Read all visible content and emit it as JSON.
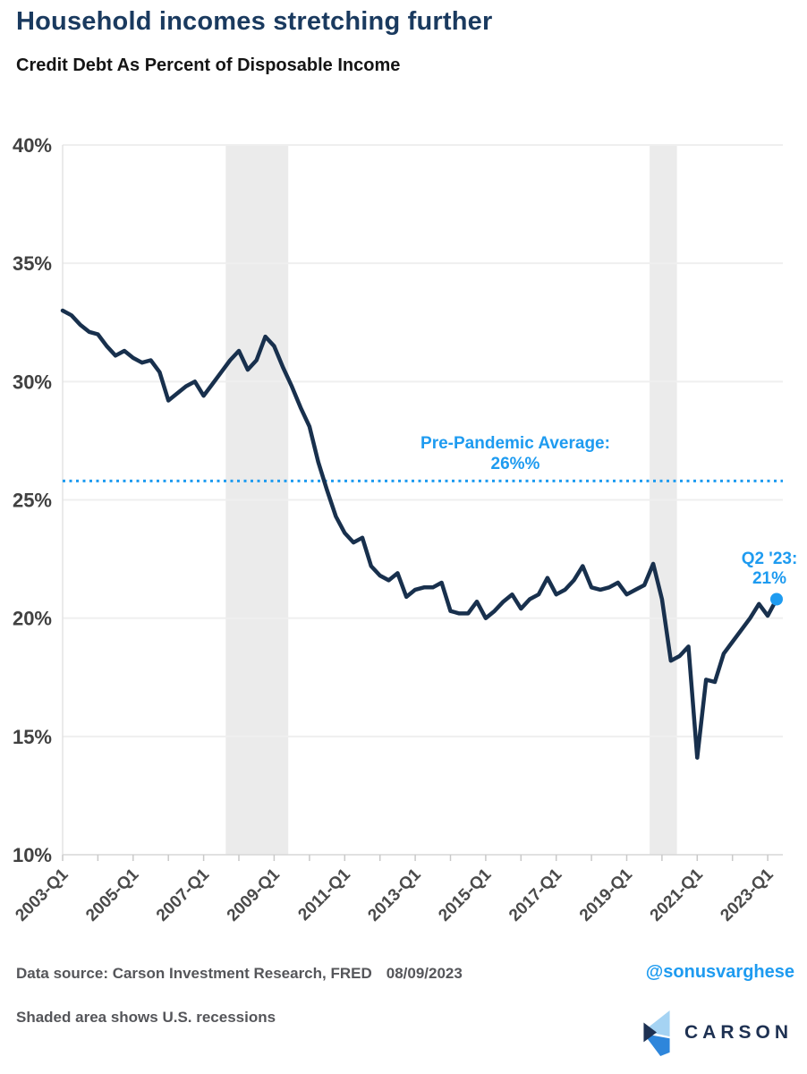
{
  "header": {
    "title": "Household incomes stretching further",
    "subtitle": "Credit Debt As Percent of Disposable Income"
  },
  "chart_data": {
    "type": "line",
    "title": "Credit Debt As Percent of Disposable Income",
    "grid": "horizontal",
    "x_axis": {
      "range": [
        "2003-Q1",
        "2023-Q2"
      ],
      "frequency": "quarterly",
      "tick_labels": [
        "2003-Q1",
        "2005-Q1",
        "2007-Q1",
        "2009-Q1",
        "2011-Q1",
        "2013-Q1",
        "2015-Q1",
        "2017-Q1",
        "2019-Q1",
        "2021-Q1",
        "2023-Q1"
      ],
      "minor_ticks": "yearly"
    },
    "y_axis": {
      "min": 10,
      "max": 40,
      "unit": "%",
      "tick_labels": [
        "10%",
        "15%",
        "20%",
        "25%",
        "30%",
        "35%",
        "40%"
      ]
    },
    "series": [
      {
        "name": "Credit debt as percent of disposable income",
        "color": "#18304d",
        "quarters": [
          "2003-Q1",
          "2003-Q2",
          "2003-Q3",
          "2003-Q4",
          "2004-Q1",
          "2004-Q2",
          "2004-Q3",
          "2004-Q4",
          "2005-Q1",
          "2005-Q2",
          "2005-Q3",
          "2005-Q4",
          "2006-Q1",
          "2006-Q2",
          "2006-Q3",
          "2006-Q4",
          "2007-Q1",
          "2007-Q2",
          "2007-Q3",
          "2007-Q4",
          "2008-Q1",
          "2008-Q2",
          "2008-Q3",
          "2008-Q4",
          "2009-Q1",
          "2009-Q2",
          "2009-Q3",
          "2009-Q4",
          "2010-Q1",
          "2010-Q2",
          "2010-Q3",
          "2010-Q4",
          "2011-Q1",
          "2011-Q2",
          "2011-Q3",
          "2011-Q4",
          "2012-Q1",
          "2012-Q2",
          "2012-Q3",
          "2012-Q4",
          "2013-Q1",
          "2013-Q2",
          "2013-Q3",
          "2013-Q4",
          "2014-Q1",
          "2014-Q2",
          "2014-Q3",
          "2014-Q4",
          "2015-Q1",
          "2015-Q2",
          "2015-Q3",
          "2015-Q4",
          "2016-Q1",
          "2016-Q2",
          "2016-Q3",
          "2016-Q4",
          "2017-Q1",
          "2017-Q2",
          "2017-Q3",
          "2017-Q4",
          "2018-Q1",
          "2018-Q2",
          "2018-Q3",
          "2018-Q4",
          "2019-Q1",
          "2019-Q2",
          "2019-Q3",
          "2019-Q4",
          "2020-Q1",
          "2020-Q2",
          "2020-Q3",
          "2020-Q4",
          "2021-Q1",
          "2021-Q2",
          "2021-Q3",
          "2021-Q4",
          "2022-Q1",
          "2022-Q2",
          "2022-Q3",
          "2022-Q4",
          "2023-Q1",
          "2023-Q2"
        ],
        "values": [
          33.0,
          32.8,
          32.4,
          32.1,
          32.0,
          31.5,
          31.1,
          31.3,
          31.0,
          30.8,
          30.9,
          30.4,
          29.2,
          29.5,
          29.8,
          30.0,
          29.4,
          29.9,
          30.4,
          30.9,
          31.3,
          30.5,
          30.9,
          31.9,
          31.5,
          30.6,
          29.8,
          28.9,
          28.1,
          26.6,
          25.4,
          24.3,
          23.6,
          23.2,
          23.4,
          22.2,
          21.8,
          21.6,
          21.9,
          20.9,
          21.2,
          21.3,
          21.3,
          21.5,
          20.3,
          20.2,
          20.2,
          20.7,
          20.0,
          20.3,
          20.7,
          21.0,
          20.4,
          20.8,
          21.0,
          21.7,
          21.0,
          21.2,
          21.6,
          22.2,
          21.3,
          21.2,
          21.3,
          21.5,
          21.0,
          21.2,
          21.4,
          22.3,
          20.8,
          18.2,
          18.4,
          18.8,
          14.1,
          17.4,
          17.3,
          18.5,
          19.0,
          19.5,
          20.0,
          20.6,
          20.1,
          20.8
        ]
      }
    ],
    "average_line": {
      "value": 25.8,
      "style": "dotted",
      "color": "#1e9bf0",
      "label": [
        "Pre-Pandemic Average:",
        "26%%"
      ]
    },
    "last_point": {
      "quarter": "2023-Q2",
      "value": 20.8,
      "marker_color": "#1e9bf0",
      "label": [
        "Q2 '23:",
        "21%"
      ]
    },
    "recessions": {
      "note": "Shaded area shows U.S. recessions",
      "color": "#ebebeb",
      "bands": [
        {
          "from_q": "2007-Q3",
          "to_q": "2009-Q3",
          "x_start_index": 18.5,
          "x_end_index": 25.6
        },
        {
          "from_q": "2019-Q4",
          "to_q": "2020-Q3",
          "x_start_index": 66.6,
          "x_end_index": 69.7
        }
      ]
    }
  },
  "footer": {
    "source": "Data source: Carson Investment Research, FRED",
    "date": "08/09/2023",
    "handle": "@sonusvarghese",
    "note": "Shaded area shows U.S. recessions",
    "logo_text": "CARSON"
  },
  "colors": {
    "title": "#1a3a5f",
    "accent_blue": "#1e9bf0",
    "line": "#18304d",
    "grid": "#efefef",
    "band": "#ebebeb",
    "y_axis_line": "#e3e3e3",
    "x_axis_line": "#d7d7d7",
    "tick": "#c9c9c9",
    "axis_text": "#474747",
    "footer_text": "#55565a",
    "logo_navy": "#1e3152",
    "logo_light_blue": "#a5d3f3",
    "logo_mid_blue": "#2e86db"
  }
}
